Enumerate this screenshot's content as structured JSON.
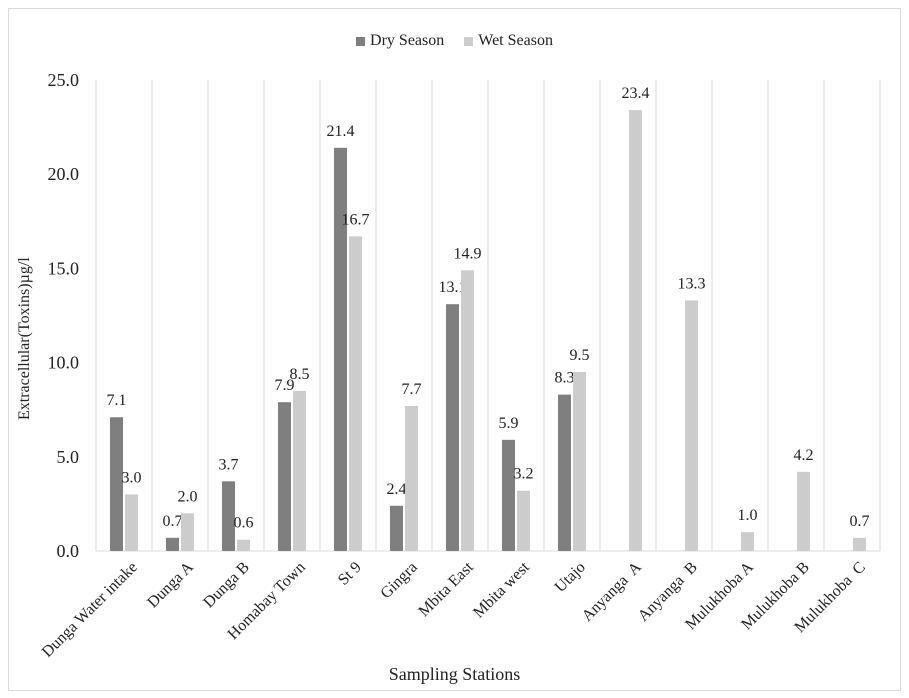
{
  "chart_data": {
    "type": "bar",
    "title": "",
    "xlabel": "Sampling Stations",
    "ylabel": "Extracellular(Toxins)µg/l",
    "ylim": [
      0,
      25
    ],
    "yticks": [
      "0.0",
      "5.0",
      "10.0",
      "15.0",
      "20.0",
      "25.0"
    ],
    "grid": "vertical category separators",
    "legend_position": "top-center",
    "categories": [
      "Dunga Water intake",
      "Dunga A",
      "Dunga B",
      "Homabay Town",
      "St 9",
      "Gingra",
      "Mbita East",
      "Mbita west",
      "Utajo",
      "Anyanga  A",
      "Anyanga  B",
      "Mulukhoba A",
      "Mulukhoba B",
      "Mulukhoba  C"
    ],
    "series": [
      {
        "name": "Dry Season",
        "color": "#7f7f7f",
        "values": [
          7.1,
          0.7,
          3.7,
          7.9,
          21.4,
          2.4,
          13.1,
          5.9,
          8.3,
          null,
          null,
          null,
          null,
          null
        ],
        "labels": [
          "7.1",
          "0.7",
          "3.7",
          "7.9",
          "21.4",
          "2.4",
          "13.1",
          "5.9",
          "8.3",
          "",
          "",
          "",
          "",
          ""
        ]
      },
      {
        "name": "Wet Season",
        "color": "#cccccc",
        "values": [
          3.0,
          2.0,
          0.6,
          8.5,
          16.7,
          7.7,
          14.9,
          3.2,
          9.5,
          23.4,
          13.3,
          1.0,
          4.2,
          0.7
        ],
        "labels": [
          "3.0",
          "2.0",
          "0.6",
          "8.5",
          "16.7",
          "7.7",
          "14.9",
          "3.2",
          "9.5",
          "23.4",
          "13.3",
          "1.0",
          "4.2",
          "0.7"
        ]
      }
    ]
  }
}
